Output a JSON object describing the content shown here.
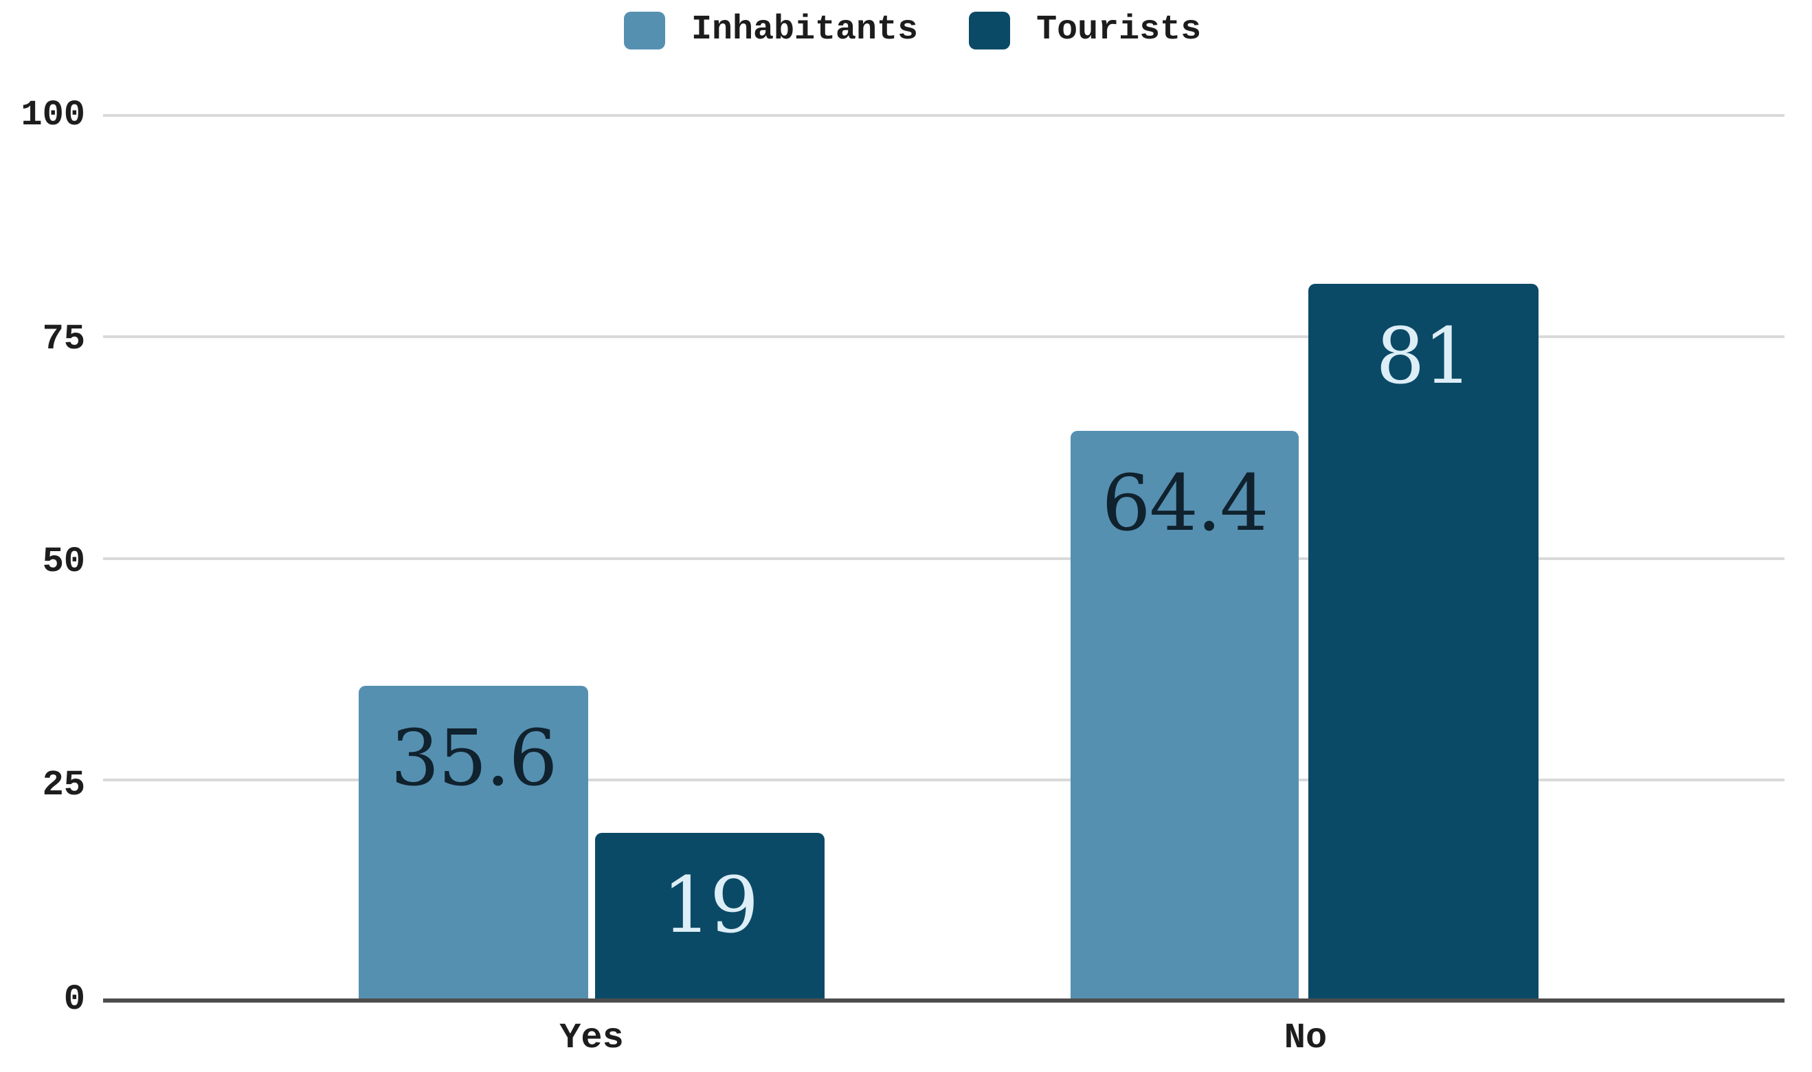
{
  "chart_data": {
    "type": "bar",
    "title": "",
    "xlabel": "",
    "ylabel": "",
    "categories": [
      "Yes",
      "No"
    ],
    "series": [
      {
        "name": "Inhabitants",
        "color": "#5690b1",
        "label_color": "#10222e",
        "values": [
          35.6,
          64.4
        ],
        "labels": [
          "35.6",
          "64.4"
        ]
      },
      {
        "name": "Tourists",
        "color": "#0b4a66",
        "label_color": "#ddeef7",
        "values": [
          19,
          81
        ],
        "labels": [
          "19",
          "81"
        ]
      }
    ],
    "ylim": [
      0,
      100
    ],
    "yticks": [
      0,
      25,
      50,
      75,
      100
    ],
    "grid": true,
    "legend_position": "top-center",
    "colors": {
      "gridline": "#d9d9d9",
      "axis": "#4d4d4d",
      "tick_text": "#1d1d1d",
      "background": "#ffffff"
    }
  }
}
